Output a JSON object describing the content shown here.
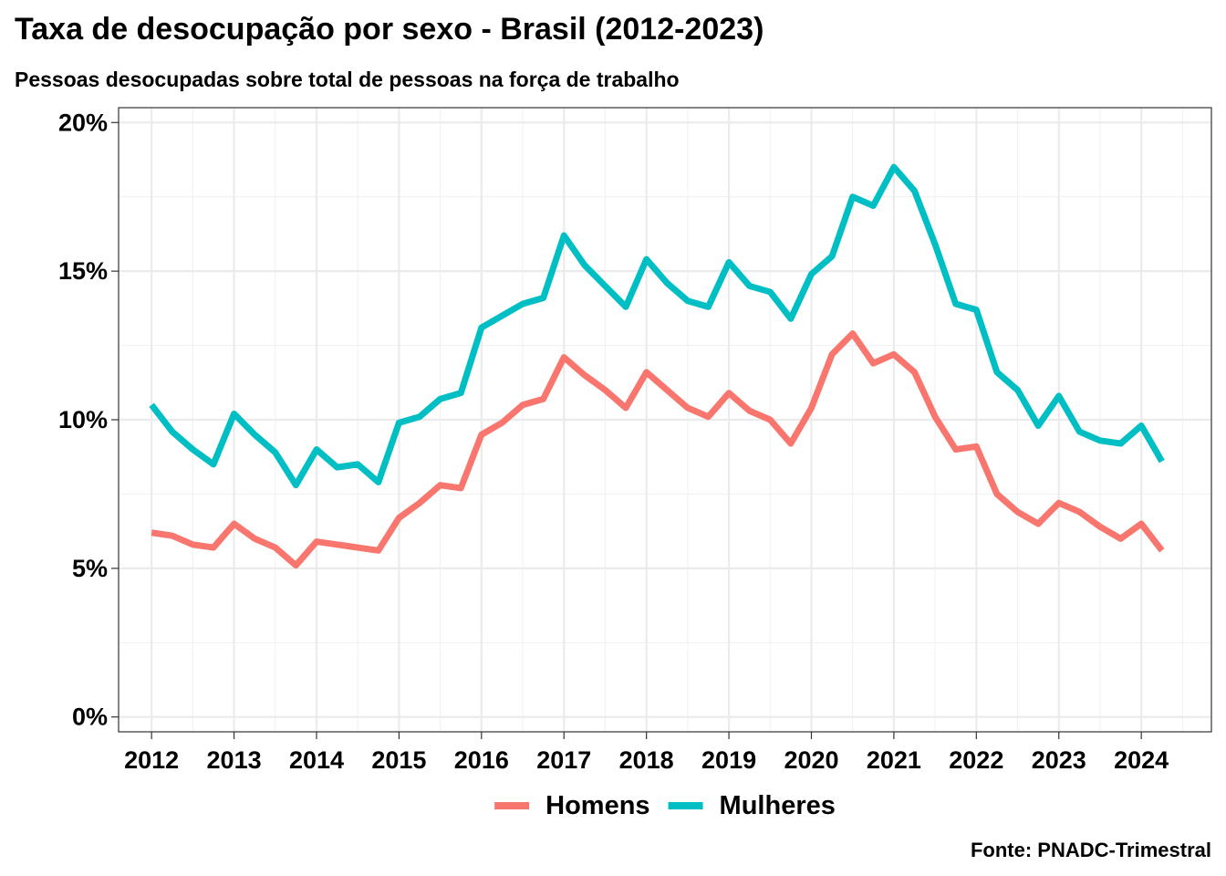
{
  "chart_data": {
    "type": "line",
    "title": "Taxa de desocupação por sexo - Brasil (2012-2023)",
    "subtitle": "Pessoas desocupadas sobre total de pessoas na força de trabalho",
    "caption": "Fonte: PNADC-Trimestral",
    "xlabel": "",
    "ylabel": "",
    "x_ticks": [
      "2012",
      "2013",
      "2014",
      "2015",
      "2016",
      "2017",
      "2018",
      "2019",
      "2020",
      "2021",
      "2022",
      "2023",
      "2024"
    ],
    "y_ticks": [
      "0%",
      "5%",
      "10%",
      "15%",
      "20%"
    ],
    "xlim": [
      2011.6,
      2024.85
    ],
    "ylim": [
      -0.5,
      20.5
    ],
    "grid": true,
    "legend_position": "bottom",
    "x": [
      2012.0,
      2012.25,
      2012.5,
      2012.75,
      2013.0,
      2013.25,
      2013.5,
      2013.75,
      2014.0,
      2014.25,
      2014.5,
      2014.75,
      2015.0,
      2015.25,
      2015.5,
      2015.75,
      2016.0,
      2016.25,
      2016.5,
      2016.75,
      2017.0,
      2017.25,
      2017.5,
      2017.75,
      2018.0,
      2018.25,
      2018.5,
      2018.75,
      2019.0,
      2019.25,
      2019.5,
      2019.75,
      2020.0,
      2020.25,
      2020.5,
      2020.75,
      2021.0,
      2021.25,
      2021.5,
      2021.75,
      2022.0,
      2022.25,
      2022.5,
      2022.75,
      2023.0,
      2023.25,
      2023.5,
      2023.75,
      2024.0,
      2024.25
    ],
    "series": [
      {
        "name": "Homens",
        "color": "#F8766D",
        "values": [
          6.2,
          6.1,
          5.8,
          5.7,
          6.5,
          6.0,
          5.7,
          5.1,
          5.9,
          5.8,
          5.7,
          5.6,
          6.7,
          7.2,
          7.8,
          7.7,
          9.5,
          9.9,
          10.5,
          10.7,
          12.1,
          11.5,
          11.0,
          10.4,
          11.6,
          11.0,
          10.4,
          10.1,
          10.9,
          10.3,
          10.0,
          9.2,
          10.4,
          12.2,
          12.9,
          11.9,
          12.2,
          11.6,
          10.1,
          9.0,
          9.1,
          7.5,
          6.9,
          6.5,
          7.2,
          6.9,
          6.4,
          6.0,
          6.5,
          5.6
        ]
      },
      {
        "name": "Mulheres",
        "color": "#00BFC4",
        "values": [
          10.5,
          9.6,
          9.0,
          8.5,
          10.2,
          9.5,
          8.9,
          7.8,
          9.0,
          8.4,
          8.5,
          7.9,
          9.9,
          10.1,
          10.7,
          10.9,
          13.1,
          13.5,
          13.9,
          14.1,
          16.2,
          15.2,
          14.5,
          13.8,
          15.4,
          14.6,
          14.0,
          13.8,
          15.3,
          14.5,
          14.3,
          13.4,
          14.9,
          15.5,
          17.5,
          17.2,
          18.5,
          17.7,
          15.9,
          13.9,
          13.7,
          11.6,
          11.0,
          9.8,
          10.8,
          9.6,
          9.3,
          9.2,
          9.8,
          8.6
        ]
      }
    ]
  }
}
